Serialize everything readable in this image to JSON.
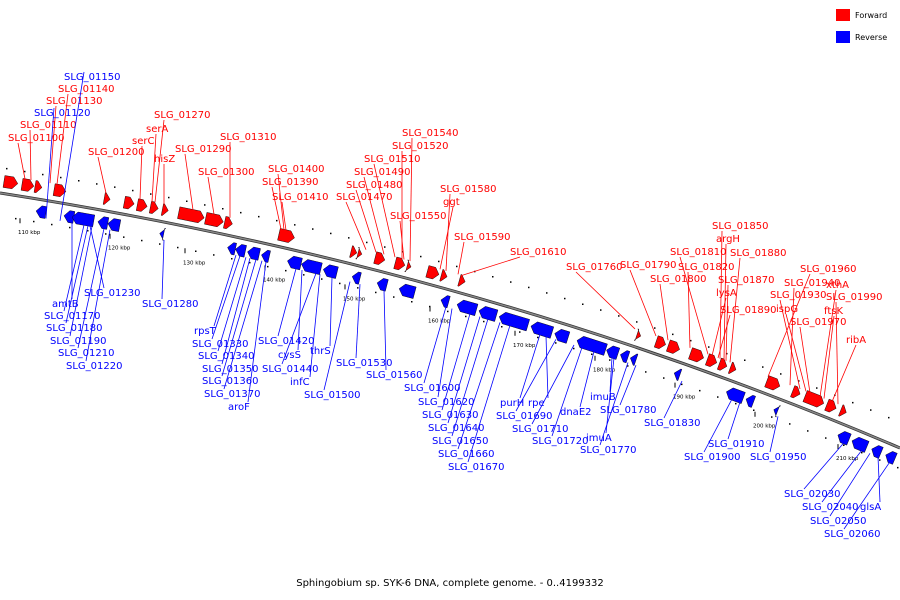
{
  "caption": "Sphingobium sp. SYK-6 DNA, complete genome. - 0..4199332",
  "legend": [
    {
      "label": "Forward",
      "color": "#ff0000"
    },
    {
      "label": "Reverse",
      "color": "#0000ff"
    }
  ],
  "colors": {
    "forward": "#ff0000",
    "reverse": "#0000ff",
    "backbone": "#888888"
  },
  "axis_ticks": [
    "110 kbp",
    "120 kbp",
    "130 kbp",
    "140 kbp",
    "150 kbp",
    "160 kbp",
    "170 kbp",
    "180 kbp",
    "190 kbp",
    "200 kbp",
    "210 kbp"
  ],
  "forward_labels": [
    "SLG_01140",
    "SLG_01130",
    "SLG_01110",
    "SLG_01100",
    "SLG_01200",
    "SLG_01270",
    "serA",
    "serC",
    "hisZ",
    "SLG_01290",
    "SLG_01310",
    "SLG_01300",
    "SLG_01400",
    "SLG_01390",
    "SLG_01410",
    "SLG_01540",
    "SLG_01520",
    "SLG_01510",
    "SLG_01490",
    "SLG_01480",
    "SLG_01470",
    "SLG_01550",
    "SLG_01580",
    "ggt",
    "SLG_01590",
    "SLG_01610",
    "SLG_01760",
    "SLG_01790",
    "SLG_01800",
    "SLG_01820",
    "SLG_01810",
    "SLG_01850",
    "argH",
    "SLG_01880",
    "lysA",
    "SLG_01870",
    "SLG_01890",
    "SLG_01960",
    "SLG_01940",
    "SLG_01930",
    "ispG",
    "xthA",
    "SLG_01990",
    "ftsK",
    "SLG_01970",
    "ribA"
  ],
  "reverse_labels": [
    "SLG_01150",
    "SLG_01120",
    "amtB",
    "SLG_01230",
    "SLG_01170",
    "SLG_01180",
    "SLG_01190",
    "SLG_01210",
    "SLG_01220",
    "SLG_01280",
    "rpsT",
    "SLG_01330",
    "SLG_01340",
    "SLG_01350",
    "SLG_01360",
    "SLG_01370",
    "aroF",
    "SLG_01420",
    "cysS",
    "SLG_01440",
    "infC",
    "thrS",
    "SLG_01500",
    "SLG_01530",
    "SLG_01560",
    "SLG_01600",
    "SLG_01620",
    "SLG_01630",
    "SLG_01640",
    "SLG_01650",
    "SLG_01660",
    "SLG_01670",
    "purH",
    "rpe",
    "SLG_01690",
    "SLG_01710",
    "SLG_01720",
    "dnaE2",
    "imuB",
    "imuA",
    "SLG_01770",
    "SLG_01780",
    "SLG_01830",
    "SLG_01910",
    "SLG_01900",
    "SLG_01950",
    "SLG_02030",
    "SLG_02040",
    "glsA",
    "SLG_02050",
    "SLG_02060"
  ]
}
